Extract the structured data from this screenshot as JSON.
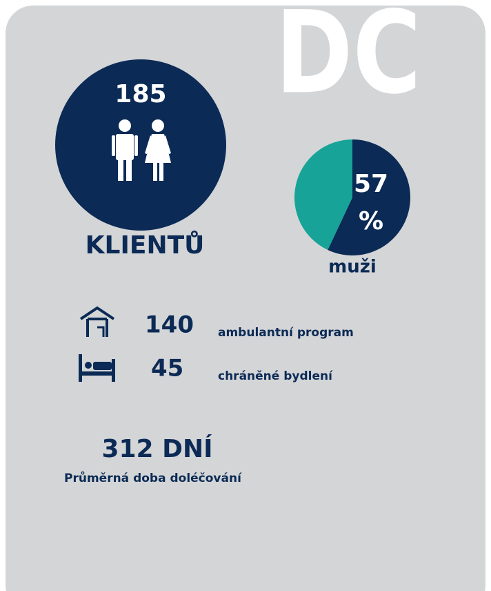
{
  "header": {
    "title": "DC"
  },
  "clients": {
    "count": 185,
    "label": "KLIENTŮ"
  },
  "chart_data": {
    "type": "pie",
    "categories": [
      "muži",
      null
    ],
    "values": [
      57,
      43
    ],
    "unit": "%",
    "colors": [
      "#0b2a55",
      "#17a398"
    ]
  },
  "services": [
    {
      "value": 140,
      "label": "ambulantní program"
    },
    {
      "value": 45,
      "label": "chráněné bydlení"
    }
  ],
  "duration": {
    "value": "312 DNÍ",
    "label": "Průměrná doba doléčování"
  }
}
